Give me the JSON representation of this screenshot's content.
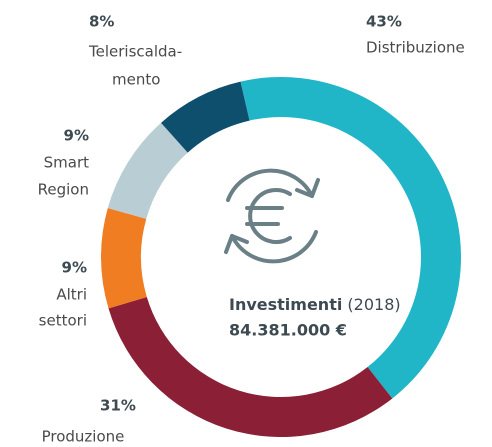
{
  "chart_data": {
    "type": "donut",
    "categories": [
      [
        "Distribuzione"
      ],
      [
        "Produzione"
      ],
      [
        "Altri",
        "settori"
      ],
      [
        "Smart",
        "Region"
      ],
      [
        "Teleriscalda-",
        "mento"
      ]
    ],
    "values": [
      43,
      31,
      9,
      9,
      8
    ],
    "value_labels": [
      "43%",
      "31%",
      "9%",
      "9%",
      "8%"
    ],
    "colors": [
      "#21b5c8",
      "#8b1f35",
      "#f07d22",
      "#b9ced4",
      "#0f4f6e"
    ],
    "center": {
      "title": "Investimenti",
      "year": "(2018)",
      "total": "84.381.000 €"
    }
  }
}
